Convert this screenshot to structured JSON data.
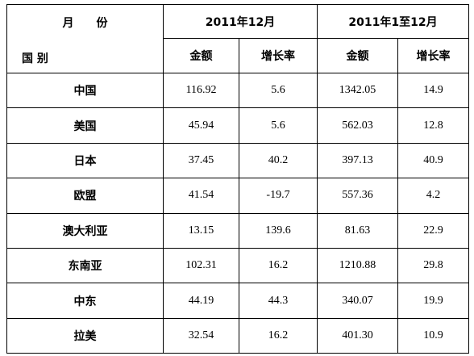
{
  "table": {
    "corner_top": "月　　份",
    "corner_bottom": "国 别",
    "groups": [
      "2011年12月",
      "2011年1至12月"
    ],
    "subheaders": [
      "金额",
      "增长率",
      "金额",
      "增长率"
    ],
    "rows": [
      [
        "中国",
        "116.92",
        "5.6",
        "1342.05",
        "14.9"
      ],
      [
        "美国",
        "45.94",
        "5.6",
        "562.03",
        "12.8"
      ],
      [
        "日本",
        "37.45",
        "40.2",
        "397.13",
        "40.9"
      ],
      [
        "欧盟",
        "41.54",
        "-19.7",
        "557.36",
        "4.2"
      ],
      [
        "澳大利亚",
        "13.15",
        "139.6",
        "81.63",
        "22.9"
      ],
      [
        "东南亚",
        "102.31",
        "16.2",
        "1210.88",
        "29.8"
      ],
      [
        "中东",
        "44.19",
        "44.3",
        "340.07",
        "19.9"
      ],
      [
        "拉美",
        "32.54",
        "16.2",
        "401.30",
        "10.9"
      ]
    ]
  }
}
